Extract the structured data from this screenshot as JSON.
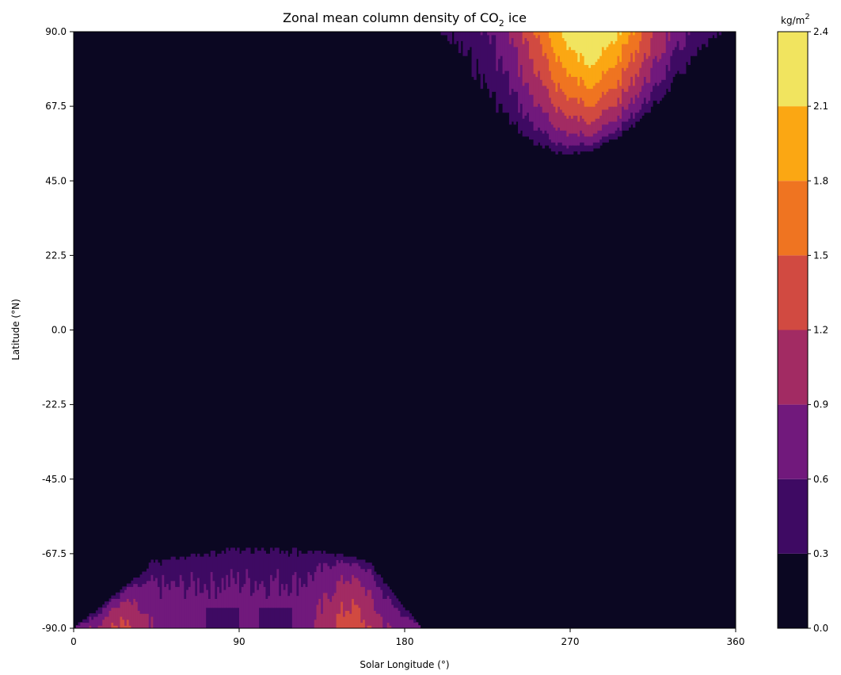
{
  "chart_data": {
    "type": "heatmap",
    "title": "Zonal mean column density of CO",
    "title_subscript": "2",
    "title_suffix": " ice",
    "xlabel": "Solar Longitude (°)",
    "ylabel": "Latitude (°N)",
    "xlim": [
      0,
      360
    ],
    "ylim": [
      -90,
      90
    ],
    "xticks": [
      "0",
      "90",
      "180",
      "270",
      "360"
    ],
    "yticks": [
      "90.0",
      "67.5",
      "45.0",
      "22.5",
      "0.0",
      "-22.5",
      "-45.0",
      "-67.5",
      "-90.0"
    ],
    "colorbar": {
      "unit": "kg/m",
      "unit_superscript": "2",
      "levels": [
        "0.0",
        "0.3",
        "0.6",
        "0.9",
        "1.2",
        "1.5",
        "1.8",
        "2.1",
        "2.4"
      ],
      "colors": [
        "#0b0722",
        "#3e0a63",
        "#71197c",
        "#a22b63",
        "#d14a41",
        "#ef7421",
        "#fba713",
        "#f1e45f"
      ]
    },
    "regions": [
      {
        "name": "northern polar cap",
        "ls_range": [
          198,
          355
        ],
        "lat_min_edge": 52,
        "max_density": 2.1,
        "peak_ls": 280
      },
      {
        "name": "southern polar cap",
        "ls_range": [
          0,
          188
        ],
        "lat_max_edge": -62,
        "max_density": 1.5,
        "peak_ls": 150
      }
    ],
    "grid": false
  }
}
